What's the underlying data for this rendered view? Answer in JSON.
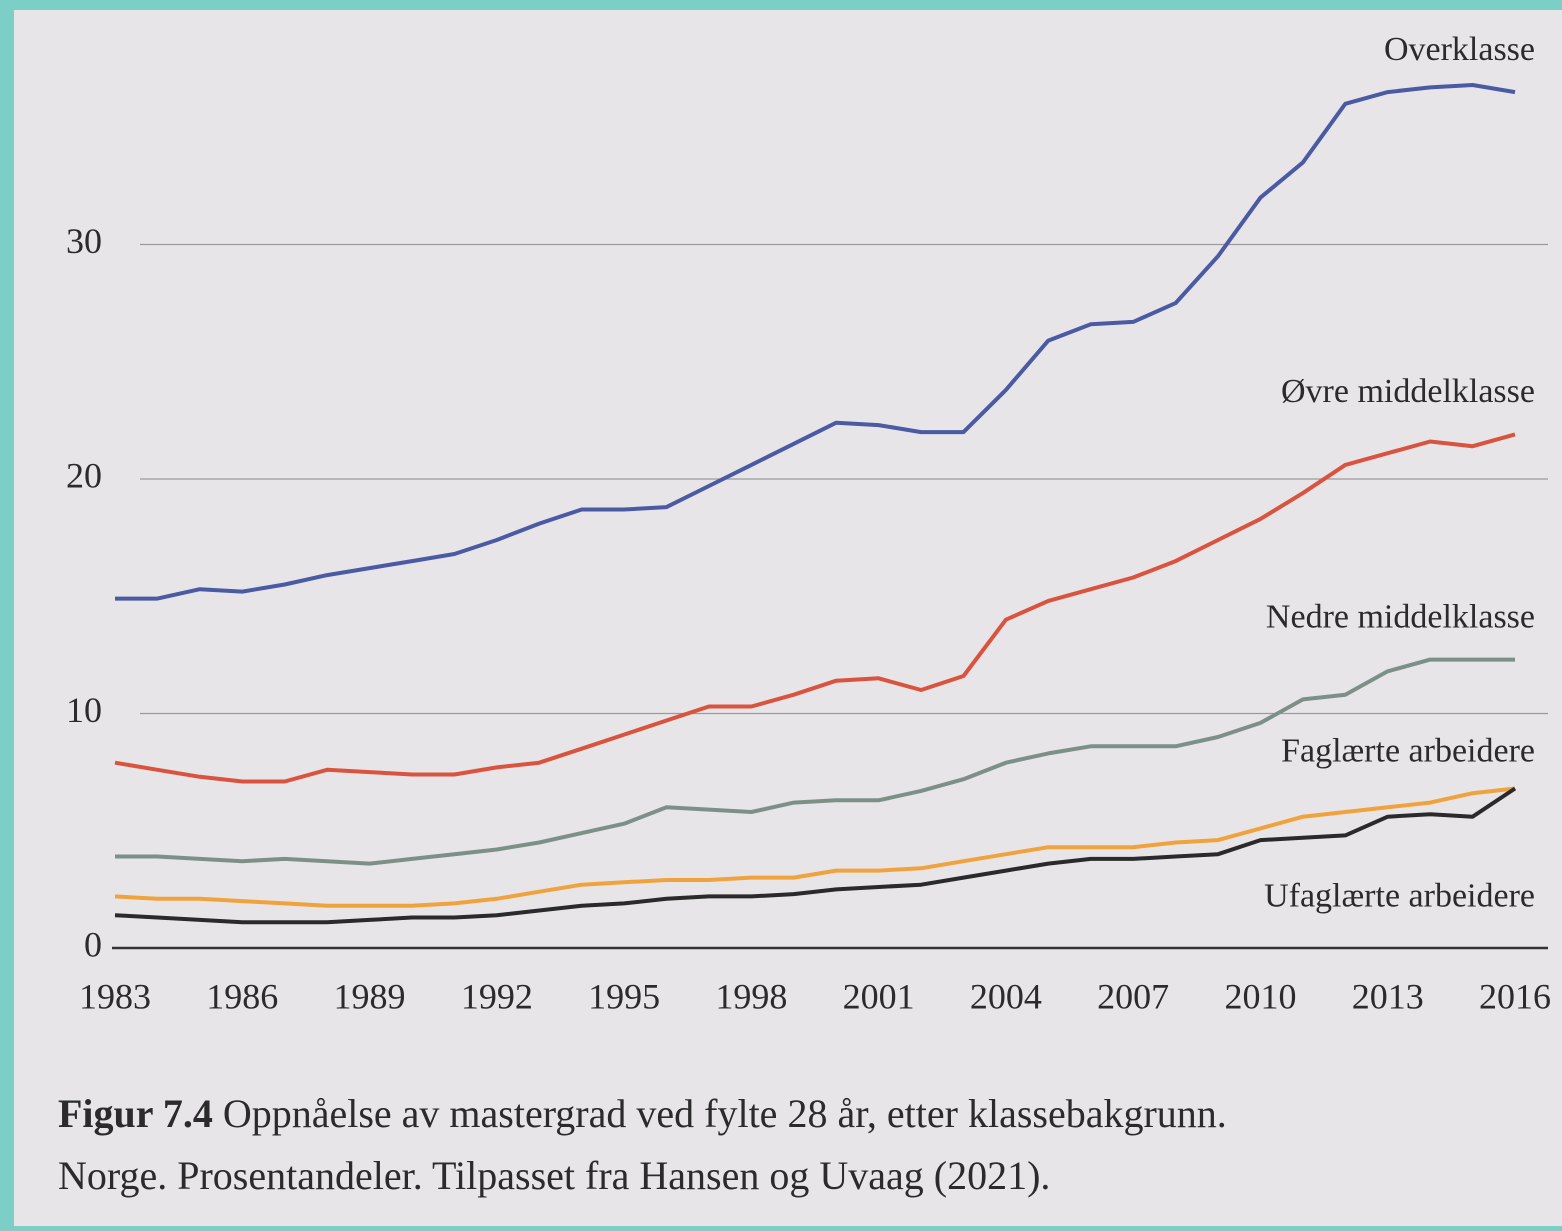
{
  "chart_data": {
    "type": "line",
    "figure_label": "Figur 7.4",
    "caption": "Oppnåelse av mastergrad ved fylte 28 år, etter klassebakgrunn.",
    "caption_line2": "Norge. Prosentandeler. Tilpasset fra Hansen og Uvaag (2021).",
    "x": [
      1983,
      1984,
      1985,
      1986,
      1987,
      1988,
      1989,
      1990,
      1991,
      1992,
      1993,
      1994,
      1995,
      1996,
      1997,
      1998,
      1999,
      2000,
      2001,
      2002,
      2003,
      2004,
      2005,
      2006,
      2007,
      2008,
      2009,
      2010,
      2011,
      2012,
      2013,
      2014,
      2015,
      2016
    ],
    "xlim": [
      1983,
      2016
    ],
    "xticks": [
      1983,
      1986,
      1989,
      1992,
      1995,
      1998,
      2001,
      2004,
      2007,
      2010,
      2013,
      2016
    ],
    "ylim": [
      0,
      40
    ],
    "yticks": [
      0,
      10,
      20,
      30
    ],
    "grid": true,
    "series": [
      {
        "name": "Overklasse",
        "color": "#4a5aa3",
        "values": [
          14.9,
          14.9,
          15.3,
          15.2,
          15.5,
          15.9,
          16.2,
          16.5,
          16.8,
          17.4,
          18.1,
          18.7,
          18.7,
          18.8,
          19.7,
          20.6,
          21.5,
          22.4,
          22.3,
          22.0,
          22.0,
          23.8,
          25.9,
          26.6,
          26.7,
          27.5,
          29.5,
          32.0,
          33.5,
          36.0,
          36.5,
          36.7,
          36.8,
          36.5
        ]
      },
      {
        "name": "Øvre middelklasse",
        "color": "#d9533f",
        "values": [
          7.9,
          7.6,
          7.3,
          7.1,
          7.1,
          7.6,
          7.5,
          7.4,
          7.4,
          7.7,
          7.9,
          8.5,
          9.1,
          9.7,
          10.3,
          10.3,
          10.8,
          11.4,
          11.5,
          11.0,
          11.6,
          14.0,
          14.8,
          15.3,
          15.8,
          16.5,
          17.4,
          18.3,
          19.4,
          20.6,
          21.1,
          21.6,
          21.4,
          21.9
        ]
      },
      {
        "name": "Nedre middelklasse",
        "color": "#7d9088",
        "values": [
          3.9,
          3.9,
          3.8,
          3.7,
          3.8,
          3.7,
          3.6,
          3.8,
          4.0,
          4.2,
          4.5,
          4.9,
          5.3,
          6.0,
          5.9,
          5.8,
          6.2,
          6.3,
          6.3,
          6.7,
          7.2,
          7.9,
          8.3,
          8.6,
          8.6,
          8.6,
          9.0,
          9.6,
          10.6,
          10.8,
          11.8,
          12.3,
          12.3,
          12.3
        ]
      },
      {
        "name": "Faglærte arbeidere",
        "color": "#f0a33c",
        "values": [
          2.2,
          2.1,
          2.1,
          2.0,
          1.9,
          1.8,
          1.8,
          1.8,
          1.9,
          2.1,
          2.4,
          2.7,
          2.8,
          2.9,
          2.9,
          3.0,
          3.0,
          3.3,
          3.3,
          3.4,
          3.7,
          4.0,
          4.3,
          4.3,
          4.3,
          4.5,
          4.6,
          5.1,
          5.6,
          5.8,
          6.0,
          6.2,
          6.6,
          6.8
        ]
      },
      {
        "name": "Ufaglærte arbeidere",
        "color": "#2a2a2a",
        "values": [
          1.4,
          1.3,
          1.2,
          1.1,
          1.1,
          1.1,
          1.2,
          1.3,
          1.3,
          1.4,
          1.6,
          1.8,
          1.9,
          2.1,
          2.2,
          2.2,
          2.3,
          2.5,
          2.6,
          2.7,
          3.0,
          3.3,
          3.6,
          3.8,
          3.8,
          3.9,
          4.0,
          4.6,
          4.7,
          4.8,
          5.6,
          5.7,
          5.6,
          6.8
        ]
      }
    ]
  }
}
